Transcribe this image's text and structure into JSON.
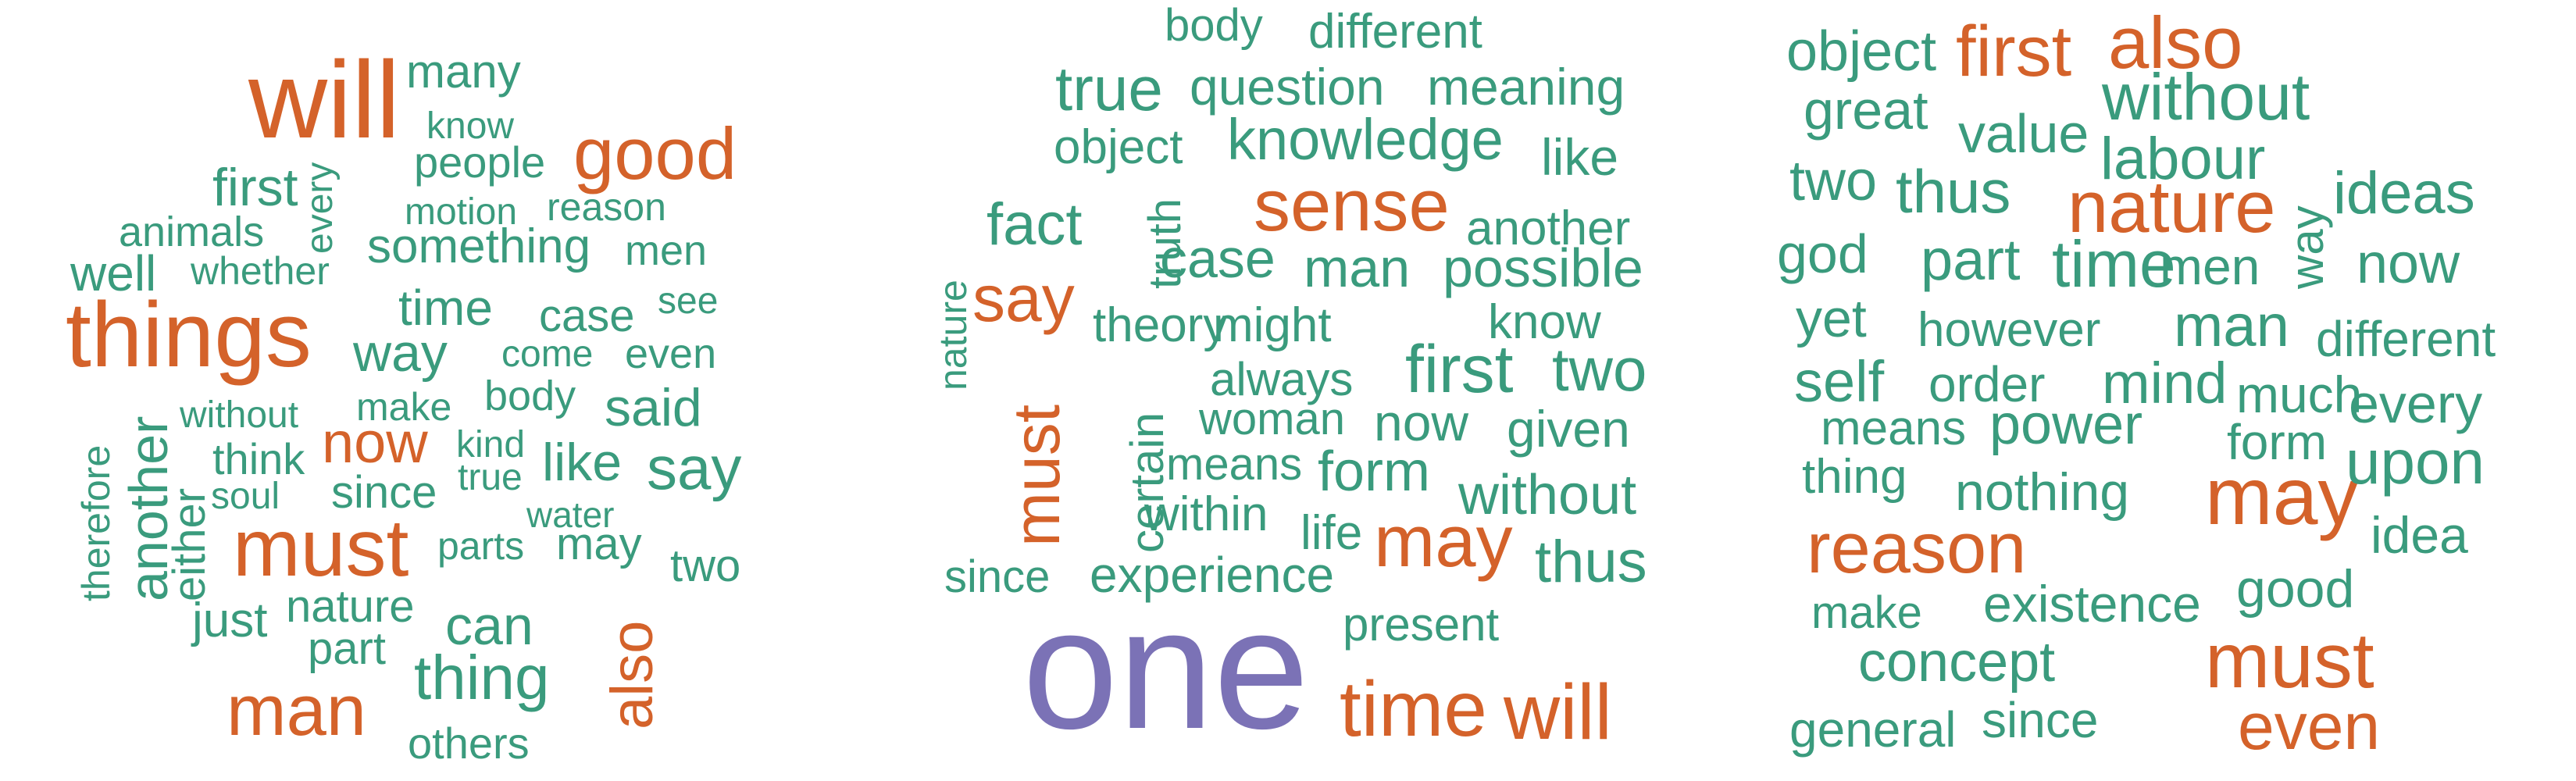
{
  "colors": {
    "green": "#3a9b7d",
    "orange": "#d4622a",
    "purple": "#7b72b6"
  },
  "clouds": [
    {
      "words": [
        {
          "text": "will",
          "color": "orange"
        },
        {
          "text": "many",
          "color": "green"
        },
        {
          "text": "know",
          "color": "green"
        },
        {
          "text": "good",
          "color": "orange"
        },
        {
          "text": "people",
          "color": "green"
        },
        {
          "text": "first",
          "color": "green"
        },
        {
          "text": "every",
          "color": "green"
        },
        {
          "text": "motion",
          "color": "green"
        },
        {
          "text": "reason",
          "color": "green"
        },
        {
          "text": "animals",
          "color": "green"
        },
        {
          "text": "something",
          "color": "green"
        },
        {
          "text": "men",
          "color": "green"
        },
        {
          "text": "well",
          "color": "green"
        },
        {
          "text": "whether",
          "color": "green"
        },
        {
          "text": "things",
          "color": "orange"
        },
        {
          "text": "time",
          "color": "green"
        },
        {
          "text": "case",
          "color": "green"
        },
        {
          "text": "see",
          "color": "green"
        },
        {
          "text": "way",
          "color": "green"
        },
        {
          "text": "come",
          "color": "green"
        },
        {
          "text": "even",
          "color": "green"
        },
        {
          "text": "without",
          "color": "green"
        },
        {
          "text": "make",
          "color": "green"
        },
        {
          "text": "body",
          "color": "green"
        },
        {
          "text": "said",
          "color": "green"
        },
        {
          "text": "therefore",
          "color": "green"
        },
        {
          "text": "another",
          "color": "green"
        },
        {
          "text": "think",
          "color": "green"
        },
        {
          "text": "now",
          "color": "orange"
        },
        {
          "text": "kind",
          "color": "green"
        },
        {
          "text": "like",
          "color": "green"
        },
        {
          "text": "say",
          "color": "green"
        },
        {
          "text": "either",
          "color": "green"
        },
        {
          "text": "soul",
          "color": "green"
        },
        {
          "text": "true",
          "color": "green"
        },
        {
          "text": "since",
          "color": "green"
        },
        {
          "text": "water",
          "color": "green"
        },
        {
          "text": "must",
          "color": "orange"
        },
        {
          "text": "parts",
          "color": "green"
        },
        {
          "text": "may",
          "color": "green"
        },
        {
          "text": "two",
          "color": "green"
        },
        {
          "text": "just",
          "color": "green"
        },
        {
          "text": "nature",
          "color": "green"
        },
        {
          "text": "can",
          "color": "green"
        },
        {
          "text": "also",
          "color": "orange"
        },
        {
          "text": "part",
          "color": "green"
        },
        {
          "text": "thing",
          "color": "green"
        },
        {
          "text": "man",
          "color": "orange"
        },
        {
          "text": "others",
          "color": "green"
        }
      ]
    },
    {
      "words": [
        {
          "text": "body",
          "color": "green"
        },
        {
          "text": "different",
          "color": "green"
        },
        {
          "text": "true",
          "color": "green"
        },
        {
          "text": "question",
          "color": "green"
        },
        {
          "text": "meaning",
          "color": "green"
        },
        {
          "text": "object",
          "color": "green"
        },
        {
          "text": "knowledge",
          "color": "green"
        },
        {
          "text": "like",
          "color": "green"
        },
        {
          "text": "sense",
          "color": "orange"
        },
        {
          "text": "fact",
          "color": "green"
        },
        {
          "text": "another",
          "color": "green"
        },
        {
          "text": "truth",
          "color": "green"
        },
        {
          "text": "case",
          "color": "green"
        },
        {
          "text": "man",
          "color": "green"
        },
        {
          "text": "possible",
          "color": "green"
        },
        {
          "text": "nature",
          "color": "green"
        },
        {
          "text": "say",
          "color": "orange"
        },
        {
          "text": "theory",
          "color": "green"
        },
        {
          "text": "might",
          "color": "green"
        },
        {
          "text": "know",
          "color": "green"
        },
        {
          "text": "must",
          "color": "orange"
        },
        {
          "text": "first",
          "color": "green"
        },
        {
          "text": "two",
          "color": "green"
        },
        {
          "text": "always",
          "color": "green"
        },
        {
          "text": "certain",
          "color": "green"
        },
        {
          "text": "woman",
          "color": "green"
        },
        {
          "text": "now",
          "color": "green"
        },
        {
          "text": "given",
          "color": "green"
        },
        {
          "text": "means",
          "color": "green"
        },
        {
          "text": "form",
          "color": "green"
        },
        {
          "text": "without",
          "color": "green"
        },
        {
          "text": "within",
          "color": "green"
        },
        {
          "text": "life",
          "color": "green"
        },
        {
          "text": "may",
          "color": "orange"
        },
        {
          "text": "thus",
          "color": "green"
        },
        {
          "text": "since",
          "color": "green"
        },
        {
          "text": "experience",
          "color": "green"
        },
        {
          "text": "present",
          "color": "green"
        },
        {
          "text": "one",
          "color": "purple"
        },
        {
          "text": "time",
          "color": "orange"
        },
        {
          "text": "will",
          "color": "orange"
        }
      ]
    },
    {
      "words": [
        {
          "text": "object",
          "color": "green"
        },
        {
          "text": "first",
          "color": "orange"
        },
        {
          "text": "also",
          "color": "orange"
        },
        {
          "text": "great",
          "color": "green"
        },
        {
          "text": "value",
          "color": "green"
        },
        {
          "text": "without",
          "color": "green"
        },
        {
          "text": "labour",
          "color": "green"
        },
        {
          "text": "two",
          "color": "green"
        },
        {
          "text": "thus",
          "color": "green"
        },
        {
          "text": "nature",
          "color": "orange"
        },
        {
          "text": "ideas",
          "color": "green"
        },
        {
          "text": "way",
          "color": "green"
        },
        {
          "text": "god",
          "color": "green"
        },
        {
          "text": "part",
          "color": "green"
        },
        {
          "text": "time",
          "color": "green"
        },
        {
          "text": "men",
          "color": "green"
        },
        {
          "text": "now",
          "color": "green"
        },
        {
          "text": "yet",
          "color": "green"
        },
        {
          "text": "however",
          "color": "green"
        },
        {
          "text": "man",
          "color": "green"
        },
        {
          "text": "different",
          "color": "green"
        },
        {
          "text": "self",
          "color": "green"
        },
        {
          "text": "order",
          "color": "green"
        },
        {
          "text": "mind",
          "color": "green"
        },
        {
          "text": "much",
          "color": "green"
        },
        {
          "text": "every",
          "color": "green"
        },
        {
          "text": "means",
          "color": "green"
        },
        {
          "text": "power",
          "color": "green"
        },
        {
          "text": "form",
          "color": "green"
        },
        {
          "text": "thing",
          "color": "green"
        },
        {
          "text": "nothing",
          "color": "green"
        },
        {
          "text": "may",
          "color": "orange"
        },
        {
          "text": "upon",
          "color": "green"
        },
        {
          "text": "reason",
          "color": "orange"
        },
        {
          "text": "idea",
          "color": "green"
        },
        {
          "text": "make",
          "color": "green"
        },
        {
          "text": "existence",
          "color": "green"
        },
        {
          "text": "good",
          "color": "green"
        },
        {
          "text": "concept",
          "color": "green"
        },
        {
          "text": "must",
          "color": "orange"
        },
        {
          "text": "general",
          "color": "green"
        },
        {
          "text": "since",
          "color": "green"
        },
        {
          "text": "even",
          "color": "orange"
        }
      ]
    }
  ]
}
